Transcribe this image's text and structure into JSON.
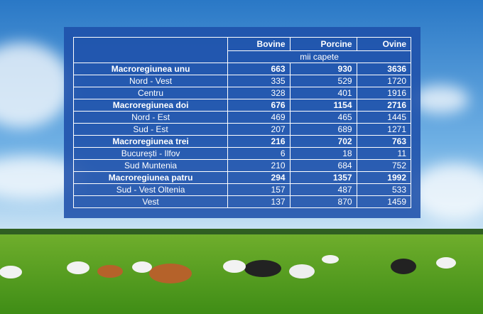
{
  "table": {
    "columns": [
      "Bovine",
      "Porcine",
      "Ovine"
    ],
    "unit": "mii capete",
    "groups": [
      {
        "name": "Macroregiunea unu",
        "values": [
          663,
          930,
          3636
        ],
        "regions": [
          {
            "name": "Nord - Vest",
            "values": [
              335,
              529,
              1720
            ]
          },
          {
            "name": "Centru",
            "values": [
              328,
              401,
              1916
            ]
          }
        ]
      },
      {
        "name": "Macroregiunea doi",
        "values": [
          676,
          1154,
          2716
        ],
        "regions": [
          {
            "name": "Nord - Est",
            "values": [
              469,
              465,
              1445
            ]
          },
          {
            "name": "Sud - Est",
            "values": [
              207,
              689,
              1271
            ]
          }
        ]
      },
      {
        "name": "Macroregiunea trei",
        "values": [
          216,
          702,
          763
        ],
        "regions": [
          {
            "name": "București - Ilfov",
            "values": [
              6,
              18,
              11
            ]
          },
          {
            "name": "Sud Muntenia",
            "values": [
              210,
              684,
              752
            ]
          }
        ]
      },
      {
        "name": "Macroregiunea patru",
        "values": [
          294,
          1357,
          1992
        ],
        "regions": [
          {
            "name": "Sud - Vest Oltenia",
            "values": [
              157,
              487,
              533
            ]
          },
          {
            "name": "Vest",
            "values": [
              137,
              870,
              1459
            ]
          }
        ]
      }
    ]
  }
}
